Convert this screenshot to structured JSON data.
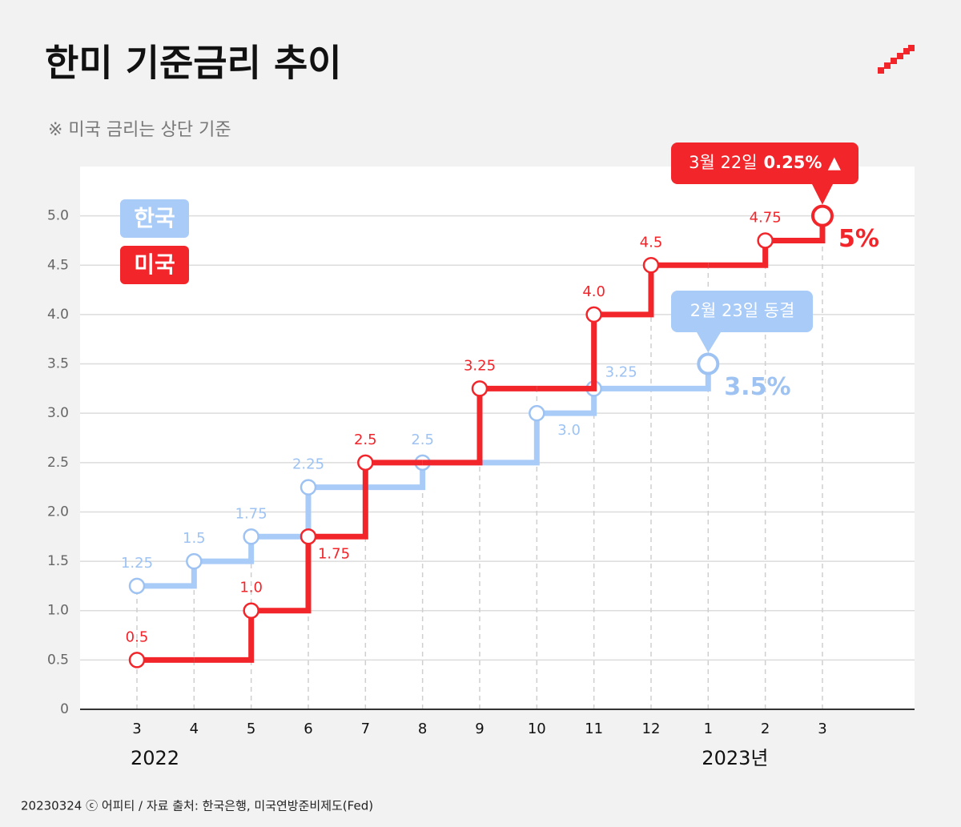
{
  "title": "한미 기준금리 추이",
  "subtitle": "※ 미국 금리는 상단 기준",
  "source": "20230324 ⓒ 어피티 / 자료 출처: 한국은행, 미국연방준비제도(Fed)",
  "chart_data": {
    "type": "step",
    "categories": [
      "3",
      "4",
      "5",
      "6",
      "7",
      "8",
      "9",
      "10",
      "11",
      "12",
      "1",
      "2",
      "3"
    ],
    "year_labels": [
      {
        "text": "2022",
        "at": 0
      },
      {
        "text": "2023년",
        "at": 10
      }
    ],
    "series": [
      {
        "name": "한국",
        "color": "#a9cbf7",
        "label_color": "#9ec3f3",
        "values": [
          1.25,
          1.5,
          1.75,
          2.25,
          2.25,
          2.5,
          2.5,
          3.0,
          3.25,
          3.25,
          3.5,
          null,
          null
        ],
        "value_labels": [
          "1.25",
          "1.5",
          "1.75",
          "2.25",
          null,
          "2.5",
          null,
          "3.0",
          "3.25",
          null,
          "3.5%",
          null,
          null
        ]
      },
      {
        "name": "미국",
        "color": "#f2252a",
        "label_color": "#f2252a",
        "values": [
          0.5,
          0.5,
          1.0,
          1.75,
          2.5,
          2.5,
          3.25,
          3.25,
          4.0,
          4.5,
          4.5,
          4.75,
          5.0
        ],
        "value_labels": [
          "0.5",
          null,
          "1.0",
          "1.75",
          "2.5",
          null,
          "3.25",
          null,
          "4.0",
          "4.5",
          null,
          "4.75",
          "5%"
        ]
      }
    ],
    "annotations": [
      {
        "text": "3월 22일",
        "bold": "0.25% ▲"
      },
      {
        "text": "2월 23일 동결"
      }
    ],
    "ylim": [
      0,
      5.5
    ],
    "yticks": [
      0,
      {
        "value": 0.5,
        "label": "0.5"
      },
      {
        "value": 1,
        "label": "1.0"
      },
      {
        "value": 1.5,
        "label": "1.5"
      },
      {
        "value": 2,
        "label": "2.0"
      },
      {
        "value": 2.5,
        "label": "2.5"
      },
      {
        "value": 3,
        "label": "3.0"
      },
      {
        "value": 3.5,
        "label": "3.5"
      },
      {
        "value": 4,
        "label": "4.0"
      },
      {
        "value": 4.5,
        "label": "4.5"
      },
      {
        "value": 5,
        "label": "5.0"
      }
    ],
    "grid": true
  }
}
